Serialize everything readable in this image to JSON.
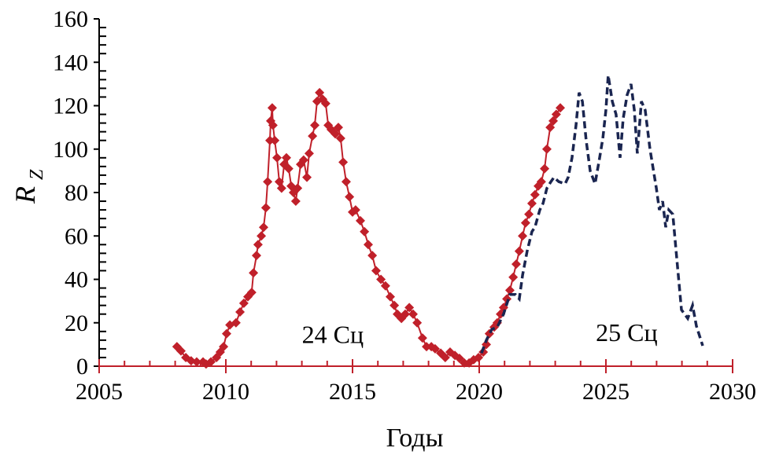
{
  "chart_data": {
    "type": "line",
    "title": "",
    "xlabel": "Годы",
    "ylabel": "R",
    "ylabel_subscript": "Z",
    "xlim": [
      2005,
      2030
    ],
    "ylim": [
      0,
      160
    ],
    "xticks": [
      2005,
      2010,
      2015,
      2020,
      2025,
      2030
    ],
    "yticks": [
      0,
      20,
      40,
      60,
      80,
      100,
      120,
      140,
      160
    ],
    "grid": false,
    "legend": "none",
    "annotations": [
      {
        "text": "24 Сц",
        "x": 2013.0,
        "y": 15
      },
      {
        "text": "25 Сц",
        "x": 2024.6,
        "y": 16
      }
    ],
    "series": [
      {
        "style": "solid-diamond-markers",
        "color": "#c0202a",
        "x": [
          2008.07,
          2008.23,
          2008.42,
          2008.63,
          2008.85,
          2009.1,
          2009.22,
          2009.41,
          2009.63,
          2009.78,
          2009.91,
          2010.03,
          2010.16,
          2010.4,
          2010.56,
          2010.71,
          2010.87,
          2011.02,
          2011.09,
          2011.21,
          2011.27,
          2011.4,
          2011.49,
          2011.58,
          2011.65,
          2011.74,
          2011.77,
          2011.83,
          2011.86,
          2011.93,
          2012.02,
          2012.11,
          2012.2,
          2012.3,
          2012.39,
          2012.48,
          2012.58,
          2012.67,
          2012.76,
          2012.83,
          2012.95,
          2013.07,
          2013.2,
          2013.29,
          2013.42,
          2013.51,
          2013.6,
          2013.7,
          2013.82,
          2013.94,
          2014.04,
          2014.16,
          2014.32,
          2014.44,
          2014.53,
          2014.63,
          2014.75,
          2014.88,
          2015.0,
          2015.12,
          2015.31,
          2015.47,
          2015.62,
          2015.78,
          2015.93,
          2016.12,
          2016.3,
          2016.49,
          2016.65,
          2016.77,
          2016.93,
          2017.08,
          2017.24,
          2017.39,
          2017.55,
          2017.76,
          2017.92,
          2018.11,
          2018.26,
          2018.48,
          2018.66,
          2018.85,
          2019.04,
          2019.22,
          2019.41,
          2019.6,
          2019.78,
          2019.97,
          2020.16,
          2020.28,
          2020.4,
          2020.59,
          2020.71,
          2020.84,
          2020.96,
          2021.09,
          2021.21,
          2021.34,
          2021.46,
          2021.58,
          2021.71,
          2021.83,
          2021.96,
          2022.08,
          2022.2,
          2022.33,
          2022.45,
          2022.58,
          2022.67,
          2022.8,
          2022.92,
          2023.04,
          2023.2
        ],
        "y": [
          9,
          7,
          4,
          2.5,
          2,
          2,
          1,
          2,
          4,
          6.5,
          9,
          15,
          19,
          20,
          25,
          29,
          32,
          34,
          43,
          51,
          56,
          60,
          64,
          73,
          85,
          104,
          113,
          119,
          111,
          104,
          96,
          85,
          82,
          93,
          96,
          91,
          83,
          80,
          76,
          82,
          93,
          95,
          87,
          98,
          106,
          111,
          122,
          126,
          123,
          121,
          111,
          109,
          107,
          110,
          105,
          94,
          85,
          78,
          71,
          72,
          67,
          62,
          56,
          51,
          44,
          40,
          37,
          32,
          28,
          24,
          22,
          24,
          27,
          24,
          20,
          13,
          9,
          9,
          8,
          6,
          4,
          6.5,
          5,
          3.6,
          1.5,
          1.5,
          3,
          4,
          6.5,
          10,
          15,
          18,
          20,
          24,
          27,
          31,
          35,
          41,
          47,
          53,
          60,
          66,
          70,
          75,
          79,
          83,
          85,
          91,
          100,
          110,
          113,
          116,
          119
        ]
      },
      {
        "style": "dashed",
        "color": "#1a2550",
        "x": [
          2020.09,
          2020.28,
          2020.5,
          2020.71,
          2020.96,
          2021.21,
          2021.43,
          2021.58,
          2021.71,
          2021.89,
          2022.08,
          2022.2,
          2022.39,
          2022.52,
          2022.67,
          2022.83,
          2022.95,
          2023.14,
          2023.39,
          2023.51,
          2023.66,
          2023.82,
          2023.94,
          2024.07,
          2024.22,
          2024.38,
          2024.57,
          2024.75,
          2024.88,
          2025.0,
          2025.09,
          2025.25,
          2025.4,
          2025.56,
          2025.68,
          2025.84,
          2025.99,
          2026.12,
          2026.24,
          2026.4,
          2026.55,
          2026.74,
          2026.99,
          2027.11,
          2027.24,
          2027.36,
          2027.48,
          2027.64,
          2027.8,
          2027.98,
          2028.23,
          2028.42,
          2028.57,
          2028.82
        ],
        "y": [
          6,
          12,
          17,
          18,
          24,
          33,
          33,
          31,
          42,
          53,
          62,
          64,
          72,
          75,
          82,
          85,
          87,
          85,
          84,
          87,
          96,
          111,
          126,
          122,
          104,
          90,
          84,
          96,
          105,
          118,
          134,
          122,
          116,
          96,
          114,
          125,
          130,
          118,
          98,
          122,
          118,
          100,
          82,
          72,
          76,
          64,
          72,
          70,
          49,
          26,
          22,
          28,
          18.5,
          9.4
        ]
      }
    ]
  }
}
